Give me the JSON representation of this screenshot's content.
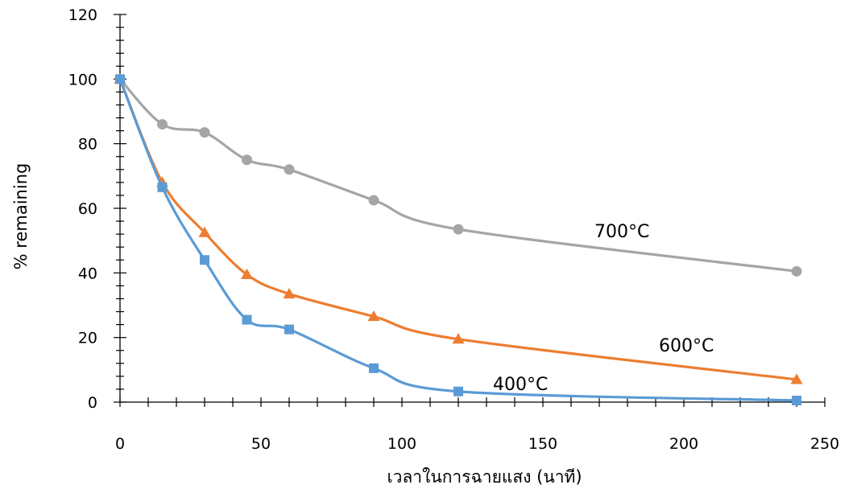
{
  "chart_data": {
    "type": "scatter",
    "title": "",
    "xlabel": "เวลาในการฉายแสง (นาที)",
    "ylabel": "% remaining",
    "xlim": [
      0,
      250
    ],
    "ylim": [
      0,
      120
    ],
    "xticks": [
      0,
      50,
      100,
      150,
      200,
      250
    ],
    "yticks": [
      0,
      20,
      40,
      60,
      80,
      100,
      120
    ],
    "x_minor_step": 10,
    "y_minor_step": 4,
    "grid": false,
    "legend": "none",
    "x": [
      0,
      15,
      30,
      45,
      60,
      90,
      120,
      240
    ],
    "series": [
      {
        "name": "700°C",
        "color": "#A5A5A5",
        "marker": "circle",
        "values": [
          100,
          86,
          83.5,
          75,
          72,
          62.5,
          53.5,
          40.5
        ]
      },
      {
        "name": "600°C",
        "color": "#ED7D31",
        "marker": "triangle",
        "values": [
          100,
          68,
          52.5,
          39.5,
          33.5,
          26.5,
          19.5,
          7
        ]
      },
      {
        "name": "400°C",
        "color": "#5B9BD5",
        "marker": "square",
        "values": [
          100,
          66.5,
          44,
          25.5,
          22.5,
          10.5,
          3.3,
          0.5
        ]
      }
    ]
  }
}
